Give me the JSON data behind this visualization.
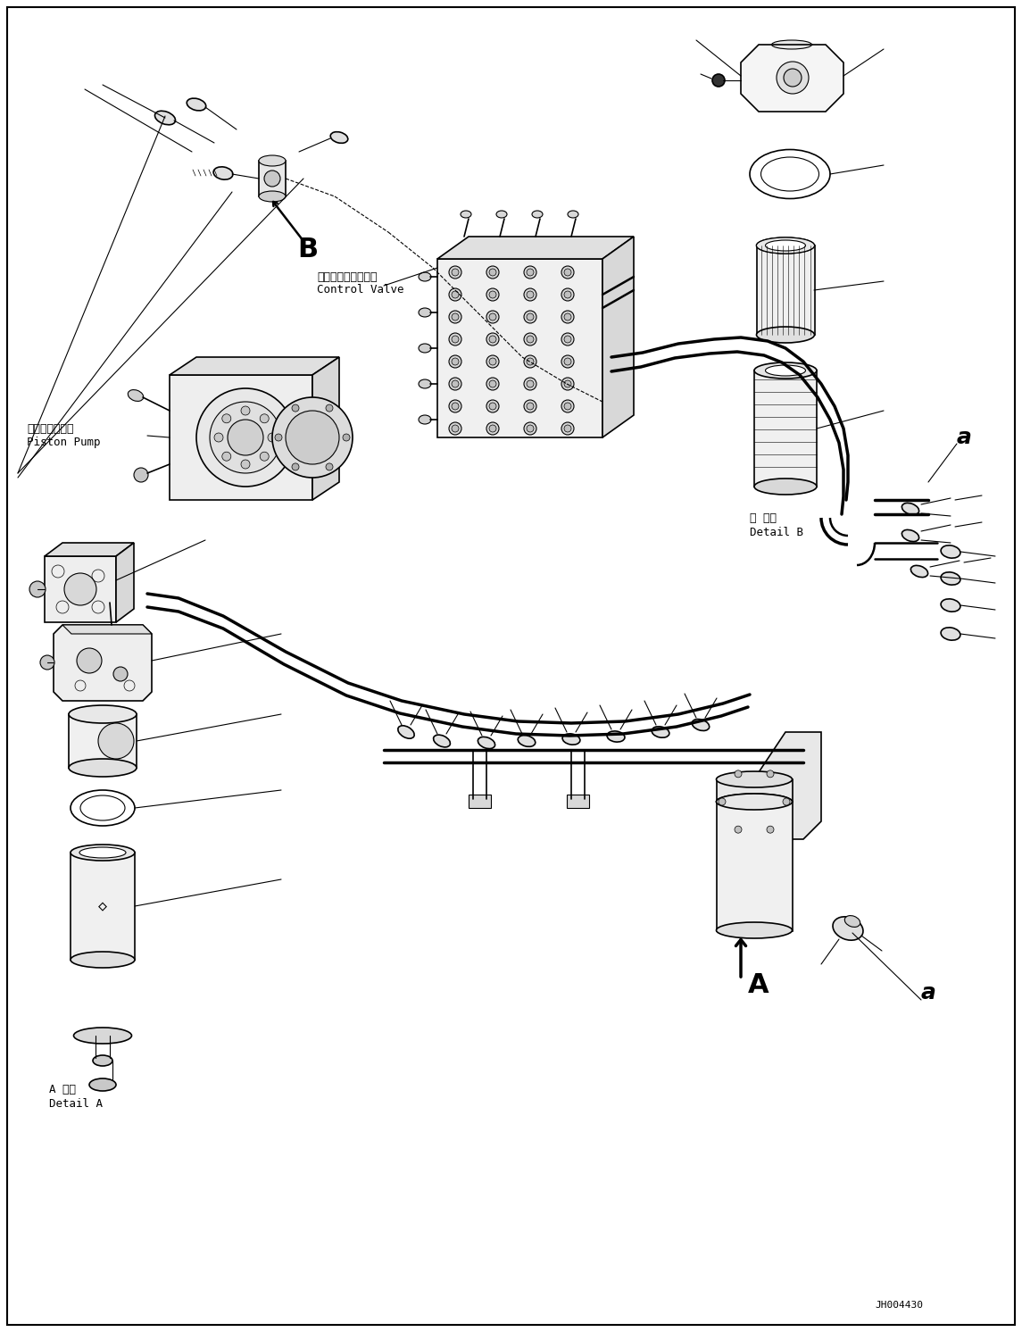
{
  "bg_color": "#ffffff",
  "lc": "#000000",
  "figsize": [
    11.45,
    14.92
  ],
  "dpi": 100,
  "labels": {
    "control_valve_jp": "コントロールバルブ",
    "control_valve_en": "Control Valve",
    "piston_pump_jp": "ピストンポンプ",
    "piston_pump_en": "Piston Pump",
    "detail_a_jp": "A 詳細",
    "detail_a_en": "Detail A",
    "detail_b_jp": "日 詳細",
    "detail_b_en": "Detail B",
    "label_b": "B",
    "label_A_big": "A",
    "label_a_small_1": "a",
    "label_a_small_2": "a",
    "watermark": "JH004430"
  },
  "text_positions": {
    "control_valve": [
      355,
      310,
      9
    ],
    "piston_pump": [
      30,
      490,
      9
    ],
    "detail_a": [
      55,
      1390,
      9
    ],
    "detail_b": [
      630,
      490,
      9
    ],
    "label_b": [
      285,
      265,
      22
    ],
    "label_A": [
      660,
      1055,
      22
    ],
    "label_a1": [
      1070,
      490,
      18
    ],
    "label_a2": [
      1050,
      1070,
      18
    ],
    "watermark": [
      975,
      1460,
      8
    ]
  }
}
